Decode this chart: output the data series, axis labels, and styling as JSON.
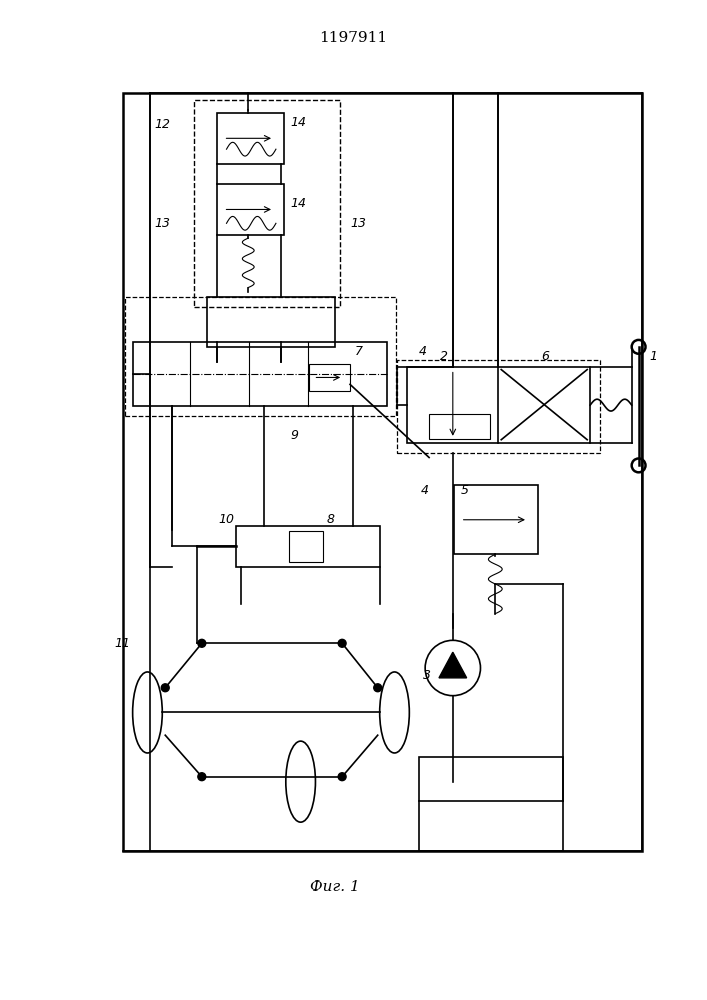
{
  "title": "1197911",
  "caption": "Фиг. 1",
  "bg_color": "#ffffff",
  "line_color": "#000000",
  "lw": 1.2,
  "lw_thin": 0.8,
  "lw_thick": 1.8
}
